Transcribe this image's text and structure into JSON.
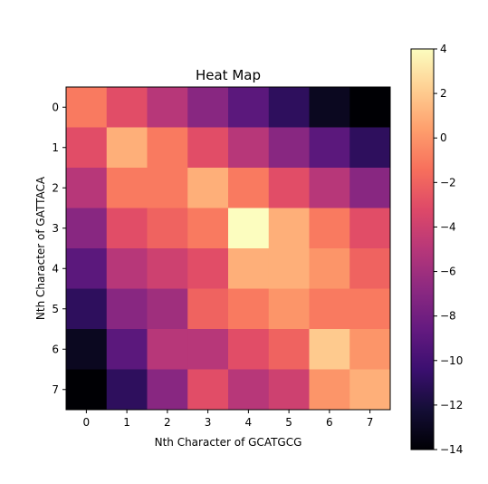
{
  "chart_data": {
    "type": "heatmap",
    "title": "Heat Map",
    "xlabel": "Nth Character of GCATGCG",
    "ylabel": "Nth Character of GATTACA",
    "x_ticks": [
      "0",
      "1",
      "2",
      "3",
      "4",
      "5",
      "6",
      "7"
    ],
    "y_ticks": [
      "0",
      "1",
      "2",
      "3",
      "4",
      "5",
      "6",
      "7"
    ],
    "colormap": "magma",
    "vmin": -14,
    "vmax": 4,
    "colorbar_ticks": [
      "4",
      "2",
      "0",
      "−2",
      "−4",
      "−6",
      "−8",
      "−10",
      "−12",
      "−14"
    ],
    "values": [
      [
        -1,
        -3,
        -5,
        -7,
        -9,
        -11,
        -13,
        -14
      ],
      [
        -3,
        1,
        -1,
        -3,
        -5,
        -7,
        -9,
        -11
      ],
      [
        -5,
        -1,
        -1,
        1,
        -1,
        -3,
        -5,
        -7
      ],
      [
        -7,
        -3,
        -2,
        -1,
        4,
        1,
        -1,
        -3
      ],
      [
        -9,
        -5,
        -4,
        -3,
        1,
        1,
        0,
        -2
      ],
      [
        -11,
        -7,
        -6,
        -2,
        -1,
        0,
        -1,
        -1
      ],
      [
        -13,
        -9,
        -5,
        -5,
        -3,
        -2,
        2,
        0
      ],
      [
        -14,
        -11,
        -7,
        -3,
        -5,
        -4,
        0,
        1
      ]
    ]
  }
}
